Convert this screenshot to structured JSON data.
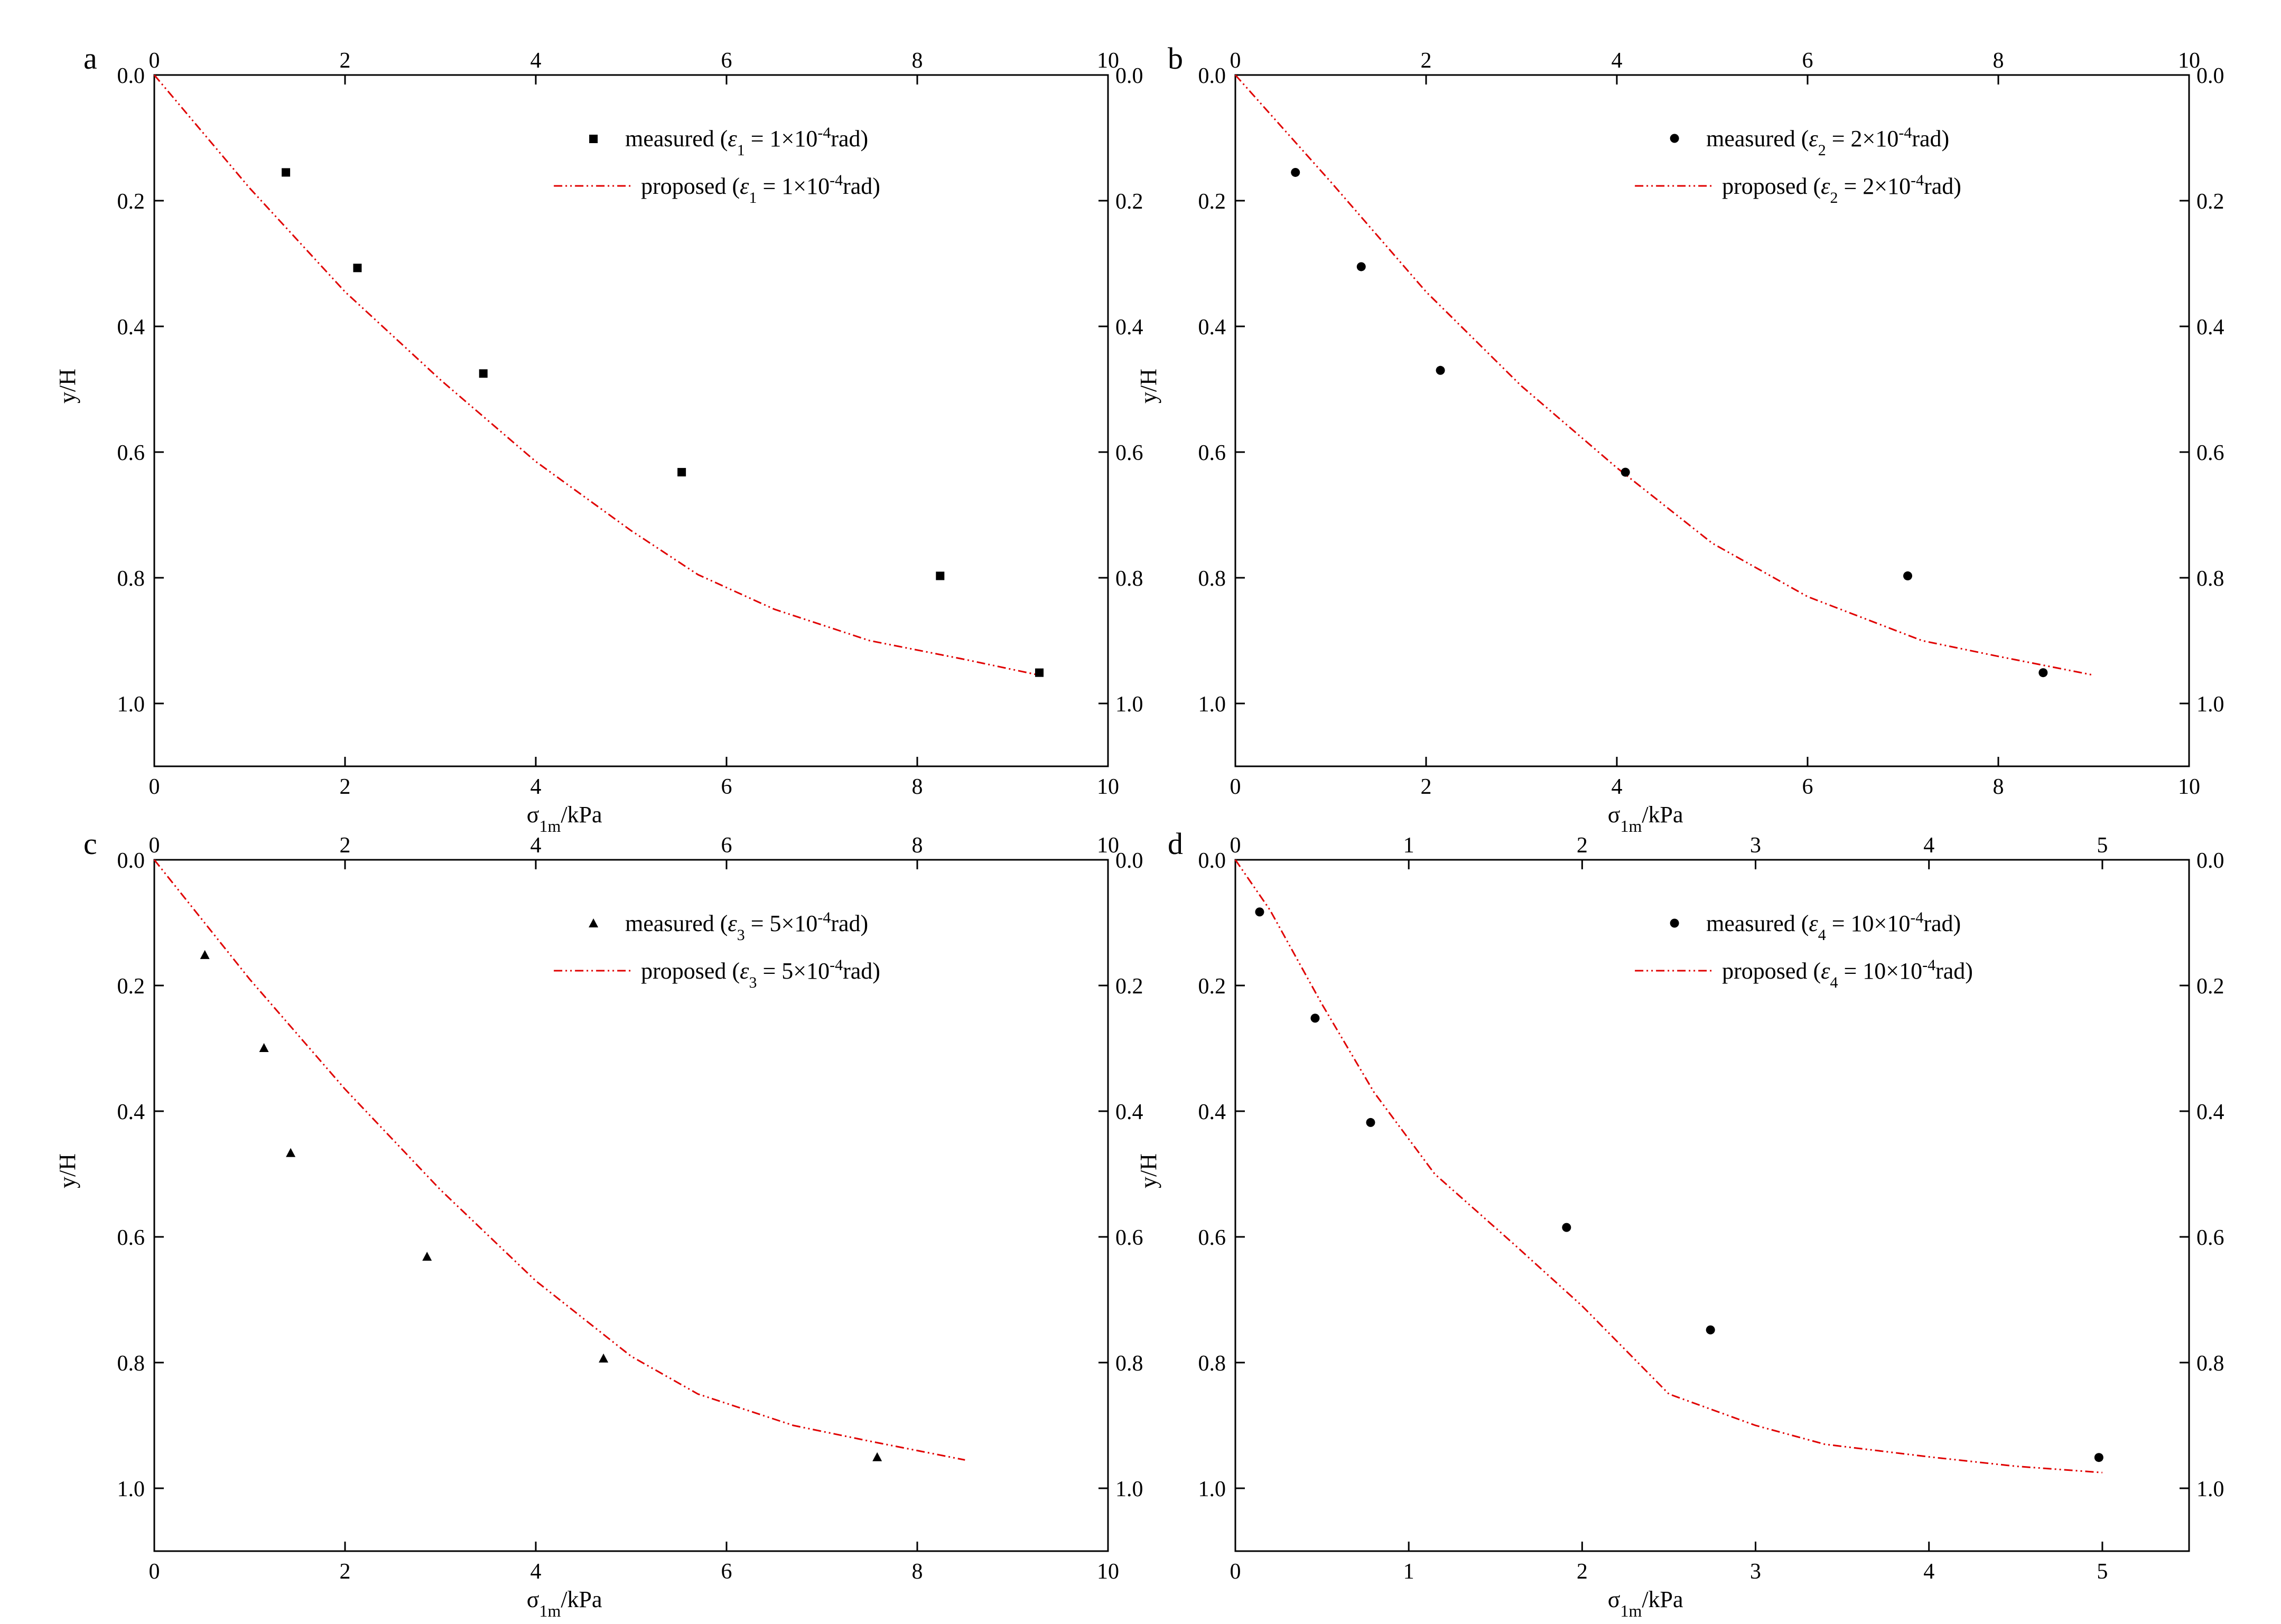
{
  "figure": {
    "panels": [
      "a",
      "b",
      "c",
      "d"
    ]
  },
  "chart_data": [
    {
      "panel": "a",
      "type": "scatter",
      "xlabel": "σ1m/kPa",
      "ylabel": "y/H",
      "xlim": [
        0,
        10
      ],
      "ylim": [
        0,
        1.1
      ],
      "y_inverted": true,
      "x_ticks": [
        0,
        2,
        4,
        6,
        8,
        10
      ],
      "y_ticks": [
        0.0,
        0.2,
        0.4,
        0.6,
        0.8,
        1.0
      ],
      "legend_position": "top-right",
      "series": [
        {
          "name": "measured (ε1 = 1×10-4rad)",
          "type": "scatter",
          "marker": "square",
          "color": "#000000",
          "x": [
            1.38,
            2.13,
            3.45,
            5.53,
            8.24,
            9.28
          ],
          "y": [
            0.155,
            0.307,
            0.475,
            0.632,
            0.797,
            0.951
          ]
        },
        {
          "name": "proposed (ε1 = 1×10-4rad)",
          "type": "line",
          "style": "dash-dot-dot",
          "color": "#e00000",
          "x": [
            0,
            1.0,
            2.0,
            3.0,
            4.0,
            5.0,
            5.7,
            6.5,
            7.5,
            8.5,
            9.28
          ],
          "y": [
            0,
            0.18,
            0.345,
            0.485,
            0.615,
            0.725,
            0.795,
            0.85,
            0.9,
            0.93,
            0.955
          ]
        }
      ]
    },
    {
      "panel": "b",
      "type": "scatter",
      "xlabel": "σ1m/kPa",
      "ylabel": "y/H",
      "xlim": [
        0,
        10
      ],
      "ylim": [
        0,
        1.1
      ],
      "y_inverted": true,
      "x_ticks": [
        0,
        2,
        4,
        6,
        8,
        10
      ],
      "y_ticks": [
        0.0,
        0.2,
        0.4,
        0.6,
        0.8,
        1.0
      ],
      "legend_position": "top-right",
      "series": [
        {
          "name": "measured (ε2 = 2×10-4rad)",
          "type": "scatter",
          "marker": "circle",
          "color": "#000000",
          "x": [
            0.63,
            1.32,
            2.15,
            4.09,
            7.05,
            8.47
          ],
          "y": [
            0.155,
            0.305,
            0.47,
            0.632,
            0.797,
            0.951
          ]
        },
        {
          "name": "proposed (ε2 = 2×10-4rad)",
          "type": "line",
          "style": "dash-dot-dot",
          "color": "#e00000",
          "x": [
            0,
            1.0,
            2.0,
            3.0,
            4.0,
            5.0,
            6.0,
            7.2,
            8.0,
            9.0
          ],
          "y": [
            0,
            0.17,
            0.345,
            0.495,
            0.625,
            0.745,
            0.83,
            0.9,
            0.925,
            0.955
          ]
        }
      ]
    },
    {
      "panel": "c",
      "type": "scatter",
      "xlabel": "σ1m/kPa",
      "ylabel": "y/H",
      "xlim": [
        0,
        10
      ],
      "ylim": [
        0,
        1.1
      ],
      "y_inverted": true,
      "x_ticks": [
        0,
        2,
        4,
        6,
        8,
        10
      ],
      "y_ticks": [
        0.0,
        0.2,
        0.4,
        0.6,
        0.8,
        1.0
      ],
      "legend_position": "top-right",
      "series": [
        {
          "name": "measured (ε3 = 5×10-4rad)",
          "type": "scatter",
          "marker": "triangle",
          "color": "#000000",
          "x": [
            0.53,
            1.15,
            1.43,
            2.86,
            4.71,
            7.58
          ],
          "y": [
            0.152,
            0.3,
            0.467,
            0.632,
            0.794,
            0.951
          ]
        },
        {
          "name": "proposed (ε3 = 5×10-4rad)",
          "type": "line",
          "style": "dash-dot-dot",
          "color": "#e00000",
          "x": [
            0,
            1.0,
            2.0,
            3.0,
            4.0,
            5.0,
            5.7,
            6.7,
            7.5,
            8.5
          ],
          "y": [
            0,
            0.19,
            0.365,
            0.525,
            0.67,
            0.79,
            0.85,
            0.9,
            0.925,
            0.955
          ]
        }
      ]
    },
    {
      "panel": "d",
      "type": "scatter",
      "xlabel": "σ1m/kPa",
      "ylabel": "y/H",
      "xlim": [
        0,
        5.5
      ],
      "ylim": [
        0,
        1.1
      ],
      "y_inverted": true,
      "x_ticks": [
        0,
        1,
        2,
        3,
        4,
        5
      ],
      "y_ticks": [
        0.0,
        0.2,
        0.4,
        0.6,
        0.8,
        1.0
      ],
      "legend_position": "top-right",
      "series": [
        {
          "name": "measured (ε4 = 10×10-4rad)",
          "type": "scatter",
          "marker": "circle",
          "color": "#000000",
          "x": [
            0.14,
            0.46,
            0.78,
            1.91,
            2.74,
            4.98
          ],
          "y": [
            0.083,
            0.252,
            0.418,
            0.585,
            0.748,
            0.951
          ]
        },
        {
          "name": "proposed (ε4 = 10×10-4rad)",
          "type": "line",
          "style": "dash-dot-dot",
          "color": "#e00000",
          "x": [
            0,
            0.2,
            0.5,
            0.8,
            1.15,
            1.6,
            2.0,
            2.5,
            3.0,
            3.4,
            4.0,
            4.5,
            5.0
          ],
          "y": [
            0,
            0.08,
            0.23,
            0.37,
            0.5,
            0.61,
            0.71,
            0.85,
            0.9,
            0.93,
            0.95,
            0.965,
            0.975
          ]
        }
      ]
    }
  ]
}
